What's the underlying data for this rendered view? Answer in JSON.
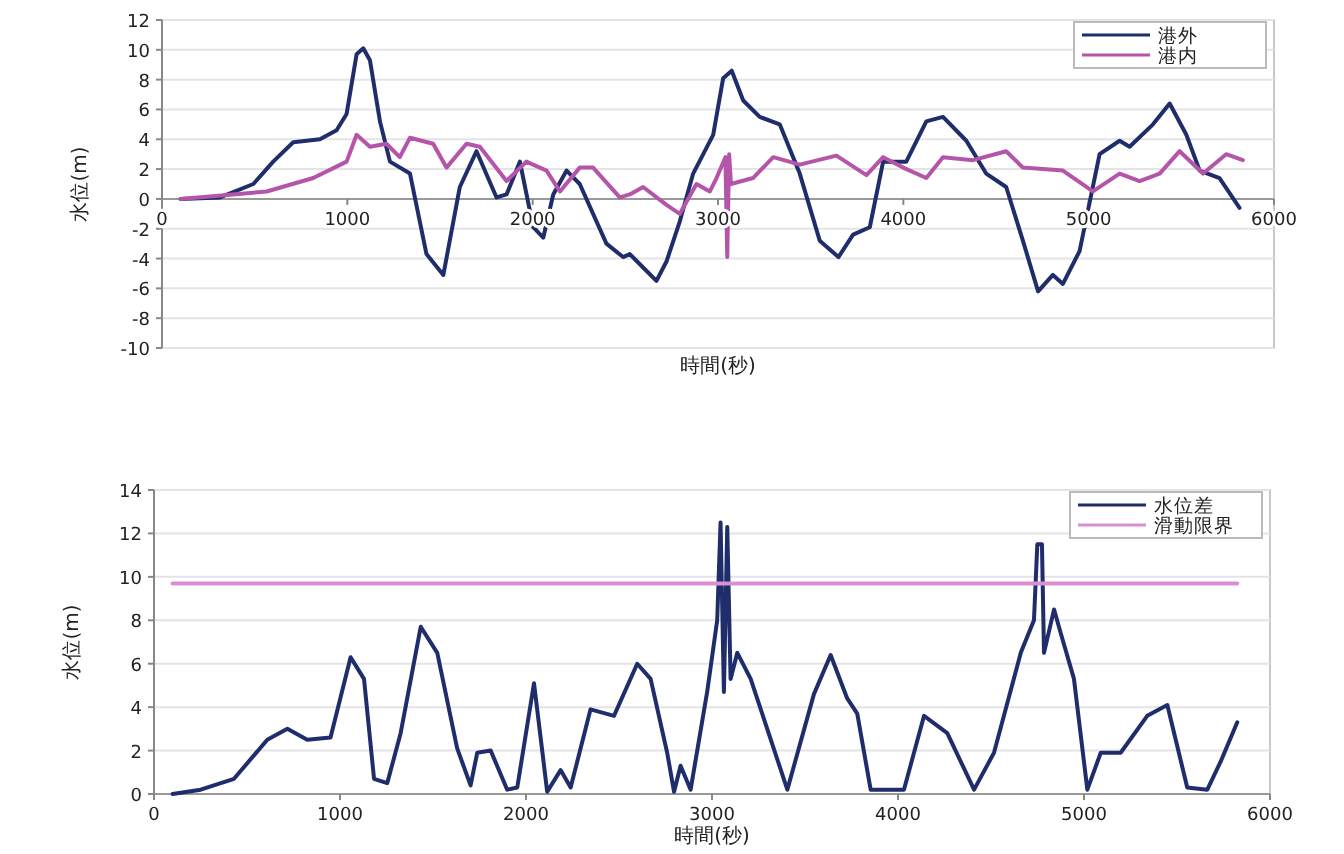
{
  "chart_data": [
    {
      "type": "line",
      "xlabel": "時間(秒)",
      "ylabel": "水位(m)",
      "xlim": [
        0,
        6000
      ],
      "xticks": [
        0,
        1000,
        2000,
        3000,
        4000,
        5000,
        6000
      ],
      "ylim": [
        -10,
        12
      ],
      "yticks": [
        -10,
        -8,
        -6,
        -4,
        -2,
        0,
        2,
        4,
        6,
        8,
        10,
        12
      ],
      "grid": "y",
      "legend": "top right",
      "series": [
        {
          "name": "港外",
          "color": "#1f2d6b",
          "x": [
            100,
            313,
            493,
            600,
            708,
            852,
            942,
            996,
            1050,
            1086,
            1122,
            1176,
            1230,
            1338,
            1427,
            1518,
            1607,
            1697,
            1805,
            1859,
            1931,
            2003,
            2057,
            2111,
            2183,
            2254,
            2398,
            2488,
            2524,
            2596,
            2668,
            2722,
            2794,
            2866,
            2974,
            3028,
            3074,
            3136,
            3225,
            3333,
            3441,
            3549,
            3650,
            3729,
            3819,
            3891,
            4016,
            4124,
            4214,
            4340,
            4447,
            4555,
            4645,
            4727,
            4807,
            4861,
            4951,
            5059,
            5167,
            5221,
            5347,
            5437,
            5527,
            5599,
            5706,
            5814
          ],
          "values": [
            0,
            0.1,
            1.0,
            2.5,
            3.8,
            4.0,
            4.6,
            5.7,
            9.7,
            10.1,
            9.3,
            5.2,
            2.5,
            1.7,
            -3.7,
            -5.1,
            0.8,
            3.2,
            0.1,
            0.3,
            2.5,
            -1.9,
            -2.6,
            0.3,
            1.9,
            1.0,
            -3.0,
            -3.9,
            -3.7,
            -4.6,
            -5.5,
            -4.2,
            -1.5,
            1.7,
            4.3,
            8.1,
            8.6,
            6.6,
            5.5,
            5.0,
            1.7,
            -2.8,
            -3.9,
            -2.4,
            -1.9,
            2.5,
            2.5,
            5.2,
            5.5,
            3.9,
            1.7,
            0.8,
            -2.8,
            -6.2,
            -5.1,
            -5.7,
            -3.5,
            3.0,
            3.9,
            3.5,
            5.0,
            6.4,
            4.3,
            1.9,
            1.4,
            -0.6
          ]
        },
        {
          "name": "港内",
          "color": "#b455aa",
          "x": [
            100,
            565,
            816,
            996,
            1050,
            1122,
            1211,
            1283,
            1338,
            1463,
            1535,
            1643,
            1715,
            1859,
            1966,
            2075,
            2147,
            2254,
            2326,
            2470,
            2524,
            2596,
            2722,
            2794,
            2884,
            2956,
            2992,
            3040,
            3050,
            3060,
            3070,
            3189,
            3298,
            3441,
            3639,
            3801,
            3891,
            3999,
            4124,
            4214,
            4376,
            4555,
            4645,
            4861,
            5023,
            5167,
            5275,
            5383,
            5491,
            5617,
            5742,
            5832
          ],
          "values": [
            0,
            0.5,
            1.4,
            2.5,
            4.3,
            3.5,
            3.7,
            2.8,
            4.1,
            3.7,
            2.1,
            3.7,
            3.5,
            1.2,
            2.5,
            1.9,
            0.5,
            2.1,
            2.1,
            0.1,
            0.3,
            0.8,
            -0.4,
            -1.0,
            1.0,
            0.5,
            1.4,
            2.8,
            -3.9,
            3.0,
            1.0,
            1.4,
            2.8,
            2.3,
            2.9,
            1.6,
            2.8,
            2.1,
            1.4,
            2.8,
            2.6,
            3.2,
            2.1,
            1.9,
            0.5,
            1.7,
            1.2,
            1.7,
            3.2,
            1.7,
            3.0,
            2.6
          ]
        }
      ]
    },
    {
      "type": "line",
      "xlabel": "時間(秒)",
      "ylabel": "水位(m)",
      "xlim": [
        0,
        6000
      ],
      "xticks": [
        0,
        1000,
        2000,
        3000,
        4000,
        5000,
        6000
      ],
      "ylim": [
        0,
        14
      ],
      "yticks": [
        0,
        2,
        4,
        6,
        8,
        10,
        12,
        14
      ],
      "grid": "y",
      "legend": "top right",
      "series": [
        {
          "name": "水位差",
          "color": "#1f2d6b",
          "x": [
            100,
            251,
            430,
            609,
            717,
            824,
            949,
            1057,
            1129,
            1183,
            1254,
            1326,
            1434,
            1523,
            1630,
            1702,
            1738,
            1810,
            1899,
            1953,
            2043,
            2114,
            2186,
            2240,
            2347,
            2473,
            2598,
            2670,
            2759,
            2796,
            2831,
            2885,
            2974,
            3028,
            3046,
            3064,
            3082,
            3100,
            3136,
            3208,
            3405,
            3548,
            3638,
            3727,
            3781,
            3853,
            4032,
            4140,
            4265,
            4409,
            4516,
            4660,
            4731,
            4749,
            4774,
            4785,
            4839,
            4875,
            4946,
            5018,
            5090,
            5197,
            5340,
            5448,
            5555,
            5663,
            5735,
            5824
          ],
          "values": [
            0,
            0.2,
            0.7,
            2.5,
            3.0,
            2.5,
            2.6,
            6.3,
            5.3,
            0.7,
            0.5,
            2.8,
            7.7,
            6.5,
            2.1,
            0.4,
            1.9,
            2.0,
            0.2,
            0.3,
            5.1,
            0.1,
            1.1,
            0.3,
            3.9,
            3.6,
            6.0,
            5.3,
            1.9,
            0.1,
            1.3,
            0.2,
            4.7,
            8.0,
            12.5,
            4.7,
            12.3,
            5.3,
            6.5,
            5.3,
            0.2,
            4.6,
            6.4,
            4.4,
            3.7,
            0.2,
            0.2,
            3.6,
            2.8,
            0.2,
            1.9,
            6.5,
            8.0,
            11.5,
            11.5,
            6.5,
            8.5,
            7.4,
            5.3,
            0.2,
            1.9,
            1.9,
            3.6,
            4.1,
            0.3,
            0.2,
            1.5,
            3.3
          ]
        },
        {
          "name": "滑動限界",
          "color": "#d98fd5",
          "x": [
            100,
            5824
          ],
          "values": [
            9.7,
            9.7
          ]
        }
      ]
    }
  ]
}
